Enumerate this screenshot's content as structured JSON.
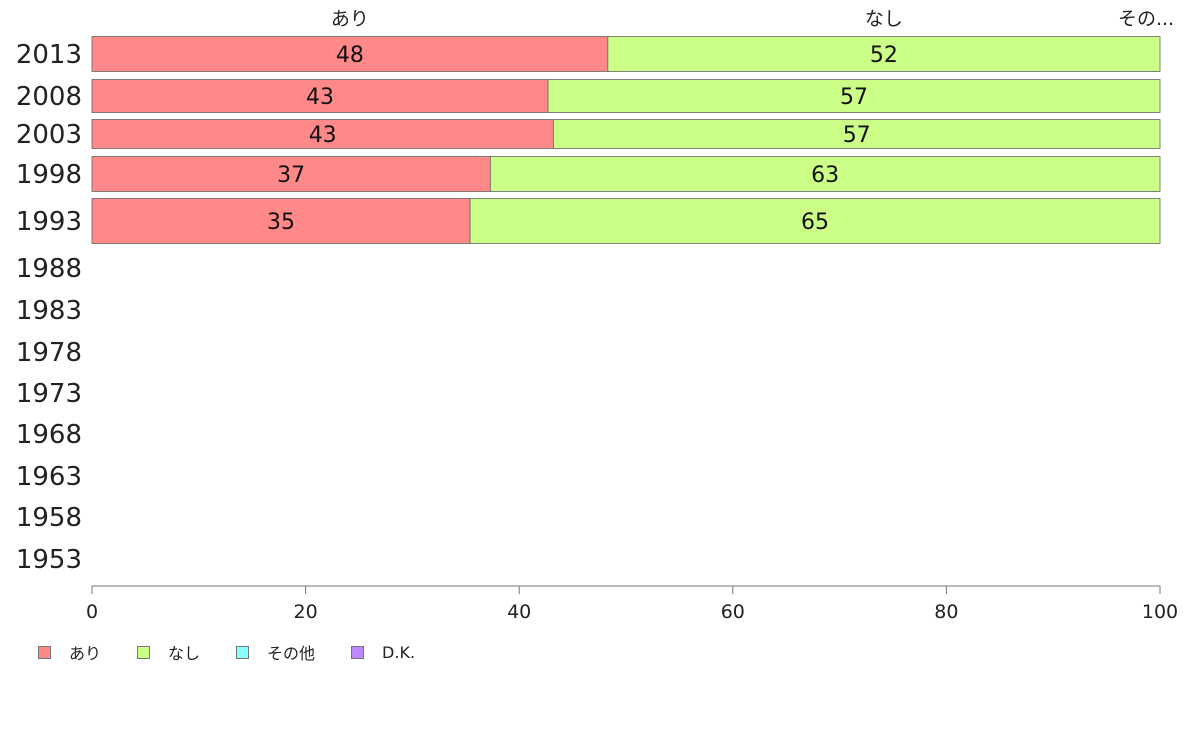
{
  "chart_data": {
    "type": "bar",
    "orientation": "horizontal",
    "stacked": true,
    "categories": [
      "2013",
      "2008",
      "2003",
      "1998",
      "1993",
      "1988",
      "1983",
      "1978",
      "1973",
      "1968",
      "1963",
      "1958",
      "1953"
    ],
    "series": [
      {
        "name": "あり",
        "color": "#FF8888",
        "values": [
          48.3,
          42.7,
          43.2,
          37.3,
          35.4,
          null,
          null,
          null,
          null,
          null,
          null,
          null,
          null
        ],
        "labels": [
          "48",
          "43",
          "43",
          "37",
          "35",
          "",
          "",
          "",
          "",
          "",
          "",
          "",
          ""
        ]
      },
      {
        "name": "なし",
        "color": "#CCFF88",
        "values": [
          51.7,
          57.3,
          56.8,
          62.7,
          64.6,
          null,
          null,
          null,
          null,
          null,
          null,
          null,
          null
        ],
        "labels": [
          "52",
          "57",
          "57",
          "63",
          "65",
          "",
          "",
          "",
          "",
          "",
          "",
          "",
          ""
        ]
      },
      {
        "name": "その他",
        "color": "#88FFFF",
        "values": [
          0,
          0,
          0,
          0,
          0,
          null,
          null,
          null,
          null,
          null,
          null,
          null,
          null
        ],
        "labels": [
          "",
          "",
          "",
          "",
          "",
          "",
          "",
          "",
          "",
          "",
          "",
          "",
          ""
        ]
      },
      {
        "name": "D.K.",
        "color": "#BB88FF",
        "values": [
          0,
          0,
          0,
          0,
          0,
          null,
          null,
          null,
          null,
          null,
          null,
          null,
          null
        ],
        "labels": [
          "",
          "",
          "",
          "",
          "",
          "",
          "",
          "",
          "",
          "",
          "",
          "",
          ""
        ]
      }
    ],
    "top_labels": [
      "あり",
      "なし",
      "その..."
    ],
    "xlim": [
      0,
      100
    ],
    "xticks": [
      0,
      20,
      40,
      60,
      80,
      100
    ],
    "legend_position": "bottom-left",
    "grid": false
  }
}
